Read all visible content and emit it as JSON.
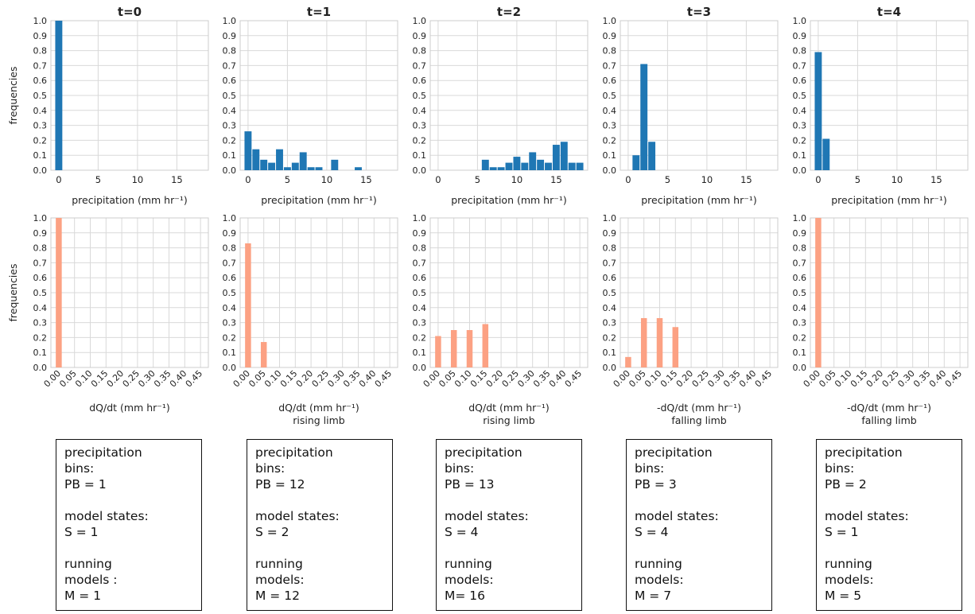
{
  "colors": {
    "precip_bar": "#1f77b4",
    "dq_bar": "#fca183",
    "grid": "#d9d9d9",
    "axis": "#cccccc"
  },
  "panels": [
    {
      "title": "t=0",
      "precip_xlabel": "precipitation (mm hr⁻¹)",
      "dq_xlabel": "dQ/dt (mm hr⁻¹)",
      "dq_sublabel": "",
      "info": "precipitation\nbins:\nPB  = 1\n\nmodel states:\nS = 1\n\nrunning\nmodels :\nM = 1"
    },
    {
      "title": "t=1",
      "precip_xlabel": "precipitation (mm hr⁻¹)",
      "dq_xlabel": "dQ/dt (mm hr⁻¹)",
      "dq_sublabel": "rising limb",
      "info": "precipitation\nbins:\nPB  = 12\n\nmodel states:\nS = 2\n\nrunning\nmodels:\nM = 12"
    },
    {
      "title": "t=2",
      "precip_xlabel": "precipitation (mm hr⁻¹)",
      "dq_xlabel": "dQ/dt (mm hr⁻¹)",
      "dq_sublabel": "rising limb",
      "info": "precipitation\nbins:\nPB  = 13\n\nmodel states:\nS = 4\n\nrunning\nmodels:\nM= 16"
    },
    {
      "title": "t=3",
      "precip_xlabel": "precipitation (mm hr⁻¹)",
      "dq_xlabel": "-dQ/dt (mm hr⁻¹)",
      "dq_sublabel": "falling limb",
      "info": "precipitation\nbins:\nPB  = 3\n\nmodel states:\nS = 4\n\nrunning\nmodels:\nM = 7"
    },
    {
      "title": "t=4",
      "precip_xlabel": "precipitation (mm hr⁻¹)",
      "dq_xlabel": "-dQ/dt (mm hr⁻¹)",
      "dq_sublabel": "falling limb",
      "info": "precipitation\nbins:\nPB  = 2\n\nmodel states:\nS = 1\n\nrunning\nmodels:\nM = 5"
    }
  ],
  "chart_data": [
    {
      "type": "bar",
      "title": "t=0",
      "xlabel": "precipitation (mm hr⁻¹)",
      "ylabel": "frequencies",
      "xlim": [
        -1,
        19
      ],
      "ylim": [
        0,
        1.0
      ],
      "xticks": [
        0,
        5,
        10,
        15
      ],
      "yticks": [
        "0.0",
        "0.1",
        "0.2",
        "0.3",
        "0.4",
        "0.5",
        "0.6",
        "0.7",
        "0.8",
        "0.9",
        "1.0"
      ],
      "grid": true,
      "bin_width": 1.0,
      "x": [
        0
      ],
      "values": [
        1.0
      ]
    },
    {
      "type": "bar",
      "title": "t=1",
      "xlabel": "precipitation (mm hr⁻¹)",
      "ylabel": "",
      "xlim": [
        -1,
        19
      ],
      "ylim": [
        0,
        1.0
      ],
      "xticks": [
        0,
        5,
        10,
        15
      ],
      "yticks": [
        "0.0",
        "0.1",
        "0.2",
        "0.3",
        "0.4",
        "0.5",
        "0.6",
        "0.7",
        "0.8",
        "0.9",
        "1.0"
      ],
      "grid": true,
      "bin_width": 1.0,
      "x": [
        0,
        1,
        2,
        3,
        4,
        5,
        6,
        7,
        8,
        9,
        11,
        14
      ],
      "values": [
        0.26,
        0.14,
        0.07,
        0.05,
        0.14,
        0.02,
        0.05,
        0.12,
        0.02,
        0.02,
        0.07,
        0.02
      ]
    },
    {
      "type": "bar",
      "title": "t=2",
      "xlabel": "precipitation (mm hr⁻¹)",
      "ylabel": "",
      "xlim": [
        -1,
        19
      ],
      "ylim": [
        0,
        1.0
      ],
      "xticks": [
        0,
        5,
        10,
        15
      ],
      "yticks": [
        "0.0",
        "0.1",
        "0.2",
        "0.3",
        "0.4",
        "0.5",
        "0.6",
        "0.7",
        "0.8",
        "0.9",
        "1.0"
      ],
      "grid": true,
      "bin_width": 1.0,
      "x": [
        6,
        7,
        8,
        9,
        10,
        11,
        12,
        13,
        14,
        15,
        16,
        17,
        18
      ],
      "values": [
        0.07,
        0.02,
        0.02,
        0.05,
        0.09,
        0.05,
        0.12,
        0.07,
        0.05,
        0.17,
        0.19,
        0.05,
        0.05
      ]
    },
    {
      "type": "bar",
      "title": "t=3",
      "xlabel": "precipitation (mm hr⁻¹)",
      "ylabel": "",
      "xlim": [
        -1,
        19
      ],
      "ylim": [
        0,
        1.0
      ],
      "xticks": [
        0,
        5,
        10,
        15
      ],
      "yticks": [
        "0.0",
        "0.1",
        "0.2",
        "0.3",
        "0.4",
        "0.5",
        "0.6",
        "0.7",
        "0.8",
        "0.9",
        "1.0"
      ],
      "grid": true,
      "bin_width": 1.0,
      "x": [
        1,
        2,
        3
      ],
      "values": [
        0.1,
        0.71,
        0.19
      ]
    },
    {
      "type": "bar",
      "title": "t=4",
      "xlabel": "precipitation (mm hr⁻¹)",
      "ylabel": "",
      "xlim": [
        -1,
        19
      ],
      "ylim": [
        0,
        1.0
      ],
      "xticks": [
        0,
        5,
        10,
        15
      ],
      "yticks": [
        "0.0",
        "0.1",
        "0.2",
        "0.3",
        "0.4",
        "0.5",
        "0.6",
        "0.7",
        "0.8",
        "0.9",
        "1.0"
      ],
      "grid": true,
      "bin_width": 1.0,
      "x": [
        0,
        1
      ],
      "values": [
        0.79,
        0.21
      ]
    },
    {
      "type": "bar",
      "title": "",
      "xlabel": "dQ/dt (mm hr⁻¹)",
      "ylabel": "frequencies",
      "xlim": [
        -0.025,
        0.475
      ],
      "ylim": [
        0,
        1.0
      ],
      "categories": [
        "0.00",
        "0.05",
        "0.10",
        "0.15",
        "0.20",
        "0.25",
        "0.30",
        "0.35",
        "0.40",
        "0.45"
      ],
      "yticks": [
        "0.0",
        "0.1",
        "0.2",
        "0.3",
        "0.4",
        "0.5",
        "0.6",
        "0.7",
        "0.8",
        "0.9",
        "1.0"
      ],
      "grid": true,
      "x": [
        0.0
      ],
      "values": [
        1.0
      ]
    },
    {
      "type": "bar",
      "title": "",
      "xlabel": "dQ/dt (mm hr⁻¹)",
      "ylabel": "",
      "xlim": [
        -0.025,
        0.475
      ],
      "ylim": [
        0,
        1.0
      ],
      "categories": [
        "0.00",
        "0.05",
        "0.10",
        "0.15",
        "0.20",
        "0.25",
        "0.30",
        "0.35",
        "0.40",
        "0.45"
      ],
      "yticks": [
        "0.0",
        "0.1",
        "0.2",
        "0.3",
        "0.4",
        "0.5",
        "0.6",
        "0.7",
        "0.8",
        "0.9",
        "1.0"
      ],
      "grid": true,
      "x": [
        0.0,
        0.05
      ],
      "values": [
        0.83,
        0.17
      ]
    },
    {
      "type": "bar",
      "title": "",
      "xlabel": "dQ/dt (mm hr⁻¹)",
      "ylabel": "",
      "xlim": [
        -0.025,
        0.475
      ],
      "ylim": [
        0,
        1.0
      ],
      "categories": [
        "0.00",
        "0.05",
        "0.10",
        "0.15",
        "0.20",
        "0.25",
        "0.30",
        "0.35",
        "0.40",
        "0.45"
      ],
      "yticks": [
        "0.0",
        "0.1",
        "0.2",
        "0.3",
        "0.4",
        "0.5",
        "0.6",
        "0.7",
        "0.8",
        "0.9",
        "1.0"
      ],
      "grid": true,
      "x": [
        0.0,
        0.05,
        0.1,
        0.15
      ],
      "values": [
        0.21,
        0.25,
        0.25,
        0.29
      ]
    },
    {
      "type": "bar",
      "title": "",
      "xlabel": "-dQ/dt (mm hr⁻¹)",
      "ylabel": "",
      "xlim": [
        -0.025,
        0.475
      ],
      "ylim": [
        0,
        1.0
      ],
      "categories": [
        "0.00",
        "0.05",
        "0.10",
        "0.15",
        "0.20",
        "0.25",
        "0.30",
        "0.35",
        "0.40",
        "0.45"
      ],
      "yticks": [
        "0.0",
        "0.1",
        "0.2",
        "0.3",
        "0.4",
        "0.5",
        "0.6",
        "0.7",
        "0.8",
        "0.9",
        "1.0"
      ],
      "grid": true,
      "x": [
        0.0,
        0.05,
        0.1,
        0.15
      ],
      "values": [
        0.07,
        0.33,
        0.33,
        0.27
      ]
    },
    {
      "type": "bar",
      "title": "",
      "xlabel": "-dQ/dt (mm hr⁻¹)",
      "ylabel": "",
      "xlim": [
        -0.025,
        0.475
      ],
      "ylim": [
        0,
        1.0
      ],
      "categories": [
        "0.00",
        "0.05",
        "0.10",
        "0.15",
        "0.20",
        "0.25",
        "0.30",
        "0.35",
        "0.40",
        "0.45"
      ],
      "yticks": [
        "0.0",
        "0.1",
        "0.2",
        "0.3",
        "0.4",
        "0.5",
        "0.6",
        "0.7",
        "0.8",
        "0.9",
        "1.0"
      ],
      "grid": true,
      "x": [
        0.0
      ],
      "values": [
        1.0
      ]
    }
  ]
}
